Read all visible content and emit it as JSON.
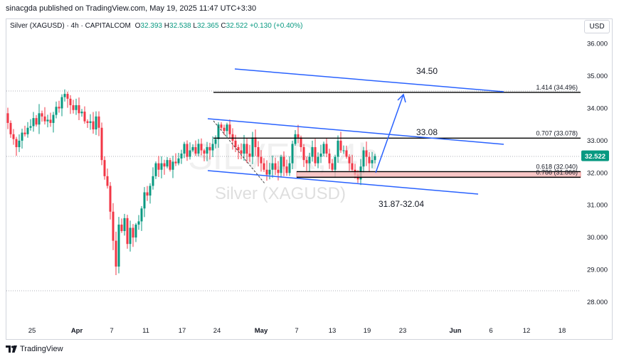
{
  "published": "sinacgda published on TradingView.com, May 19, 2025 11:47 UTC+3:30",
  "legend": {
    "symbol": "Silver (XAGUSD) · 4h · CAPITALCOM",
    "o_label": "O",
    "o_value": "32.393",
    "h_label": "H",
    "h_value": "32.538",
    "l_label": "L",
    "l_value": "32.365",
    "c_label": "C",
    "c_value": "32.522",
    "change": "+0.130 (+0.40%)"
  },
  "currency": "USD",
  "footer": {
    "brand": "TradingView"
  },
  "colors": {
    "up": "#089981",
    "down": "#f23645",
    "channel": "#2962ff",
    "level": "#000000",
    "zone": "#f7b4b4",
    "axis_text": "#131722",
    "grid_dotted": "#9598a1"
  },
  "chart_data": {
    "type": "candlestick",
    "watermark": [
      "SILVER, 4h",
      "Silver (XAGUSD)"
    ],
    "y_axis": {
      "range": [
        27.7,
        36.2
      ],
      "ticks": [
        "36.000",
        "35.000",
        "34.000",
        "33.000",
        "32.000",
        "31.000",
        "30.000",
        "29.000",
        "28.000"
      ],
      "last_price": "32.522"
    },
    "x_axis": {
      "labels": [
        "25",
        "Apr",
        "7",
        "11",
        "17",
        "24",
        "May",
        "7",
        "13",
        "19",
        "23",
        "Jun",
        "6",
        "12",
        "18"
      ],
      "bold": [
        "Apr",
        "May",
        "Jun"
      ]
    },
    "fib_levels": [
      {
        "label": "1.414 (34.496)",
        "price": 34.496
      },
      {
        "label": "0.707 (33.078)",
        "price": 33.078
      },
      {
        "label": "0.618 (32.040)",
        "price": 32.04
      },
      {
        "label": "0.786 (31.866)",
        "price": 31.866
      }
    ],
    "annotations": [
      "34.50",
      "33.08",
      "31.87-32.04"
    ],
    "price_path": [
      [
        0,
        33.85
      ],
      [
        4,
        33.55
      ],
      [
        8,
        33.2
      ],
      [
        12,
        33.05
      ],
      [
        16,
        32.8
      ],
      [
        20,
        33.0
      ],
      [
        24,
        33.25
      ],
      [
        28,
        33.2
      ],
      [
        32,
        33.4
      ],
      [
        36,
        33.45
      ],
      [
        40,
        33.7
      ],
      [
        44,
        33.5
      ],
      [
        48,
        33.85
      ],
      [
        52,
        33.75
      ],
      [
        56,
        33.6
      ],
      [
        60,
        33.65
      ],
      [
        64,
        33.55
      ],
      [
        68,
        33.8
      ],
      [
        72,
        34.05
      ],
      [
        76,
        34.0
      ],
      [
        80,
        34.35
      ],
      [
        84,
        34.45
      ],
      [
        88,
        34.3
      ],
      [
        92,
        34.1
      ],
      [
        96,
        33.95
      ],
      [
        100,
        34.1
      ],
      [
        104,
        33.85
      ],
      [
        108,
        33.9
      ],
      [
        112,
        33.6
      ],
      [
        116,
        33.55
      ],
      [
        120,
        33.6
      ],
      [
        124,
        33.35
      ],
      [
        128,
        33.75
      ],
      [
        132,
        33.4
      ],
      [
        136,
        32.4
      ],
      [
        140,
        31.9
      ],
      [
        144,
        31.6
      ],
      [
        148,
        30.8
      ],
      [
        152,
        29.9
      ],
      [
        156,
        29.1
      ],
      [
        160,
        30.4
      ],
      [
        164,
        30.2
      ],
      [
        168,
        30.6
      ],
      [
        172,
        29.8
      ],
      [
        176,
        30.3
      ],
      [
        180,
        30.0
      ],
      [
        184,
        30.4
      ],
      [
        188,
        30.5
      ],
      [
        192,
        30.9
      ],
      [
        196,
        31.4
      ],
      [
        200,
        31.3
      ],
      [
        204,
        31.6
      ],
      [
        208,
        31.9
      ],
      [
        212,
        32.3
      ],
      [
        216,
        32.1
      ],
      [
        220,
        32.3
      ],
      [
        224,
        32.2
      ],
      [
        228,
        32.4
      ],
      [
        232,
        32.1
      ],
      [
        236,
        32.35
      ],
      [
        240,
        32.3
      ],
      [
        244,
        32.45
      ],
      [
        248,
        32.6
      ],
      [
        252,
        32.9
      ],
      [
        256,
        32.5
      ],
      [
        260,
        32.7
      ],
      [
        264,
        32.8
      ],
      [
        268,
        32.6
      ],
      [
        272,
        32.9
      ],
      [
        276,
        32.7
      ],
      [
        280,
        32.6
      ],
      [
        284,
        32.8
      ],
      [
        288,
        32.7
      ],
      [
        292,
        32.9
      ],
      [
        296,
        33.05
      ],
      [
        300,
        33.5
      ],
      [
        304,
        33.4
      ],
      [
        308,
        33.3
      ],
      [
        312,
        33.5
      ],
      [
        316,
        33.2
      ],
      [
        320,
        33.0
      ],
      [
        324,
        32.8
      ],
      [
        328,
        32.7
      ],
      [
        332,
        32.6
      ],
      [
        336,
        32.9
      ],
      [
        340,
        32.6
      ],
      [
        344,
        32.5
      ],
      [
        348,
        33.1
      ],
      [
        352,
        32.8
      ],
      [
        356,
        32.5
      ],
      [
        360,
        32.3
      ],
      [
        364,
        32.1
      ],
      [
        368,
        31.95
      ],
      [
        372,
        32.1
      ],
      [
        376,
        32.3
      ],
      [
        380,
        32.1
      ],
      [
        384,
        32.0
      ],
      [
        388,
        32.5
      ],
      [
        392,
        32.2
      ],
      [
        396,
        32.0
      ],
      [
        400,
        32.3
      ],
      [
        404,
        32.9
      ],
      [
        408,
        33.2
      ],
      [
        412,
        33.1
      ],
      [
        416,
        32.8
      ],
      [
        420,
        32.4
      ],
      [
        424,
        32.3
      ],
      [
        428,
        32.5
      ],
      [
        432,
        32.8
      ],
      [
        436,
        32.3
      ],
      [
        440,
        32.5
      ],
      [
        444,
        32.6
      ],
      [
        448,
        32.9
      ],
      [
        452,
        32.6
      ],
      [
        456,
        32.3
      ],
      [
        460,
        32.1
      ],
      [
        464,
        32.5
      ],
      [
        468,
        33.0
      ],
      [
        472,
        32.7
      ],
      [
        476,
        32.7
      ],
      [
        480,
        32.5
      ],
      [
        484,
        32.3
      ],
      [
        488,
        32.1
      ],
      [
        492,
        31.95
      ],
      [
        496,
        31.8
      ],
      [
        500,
        32.2
      ],
      [
        504,
        32.7
      ],
      [
        508,
        32.5
      ],
      [
        512,
        32.3
      ],
      [
        516,
        32.4
      ],
      [
        520,
        32.52
      ]
    ]
  }
}
